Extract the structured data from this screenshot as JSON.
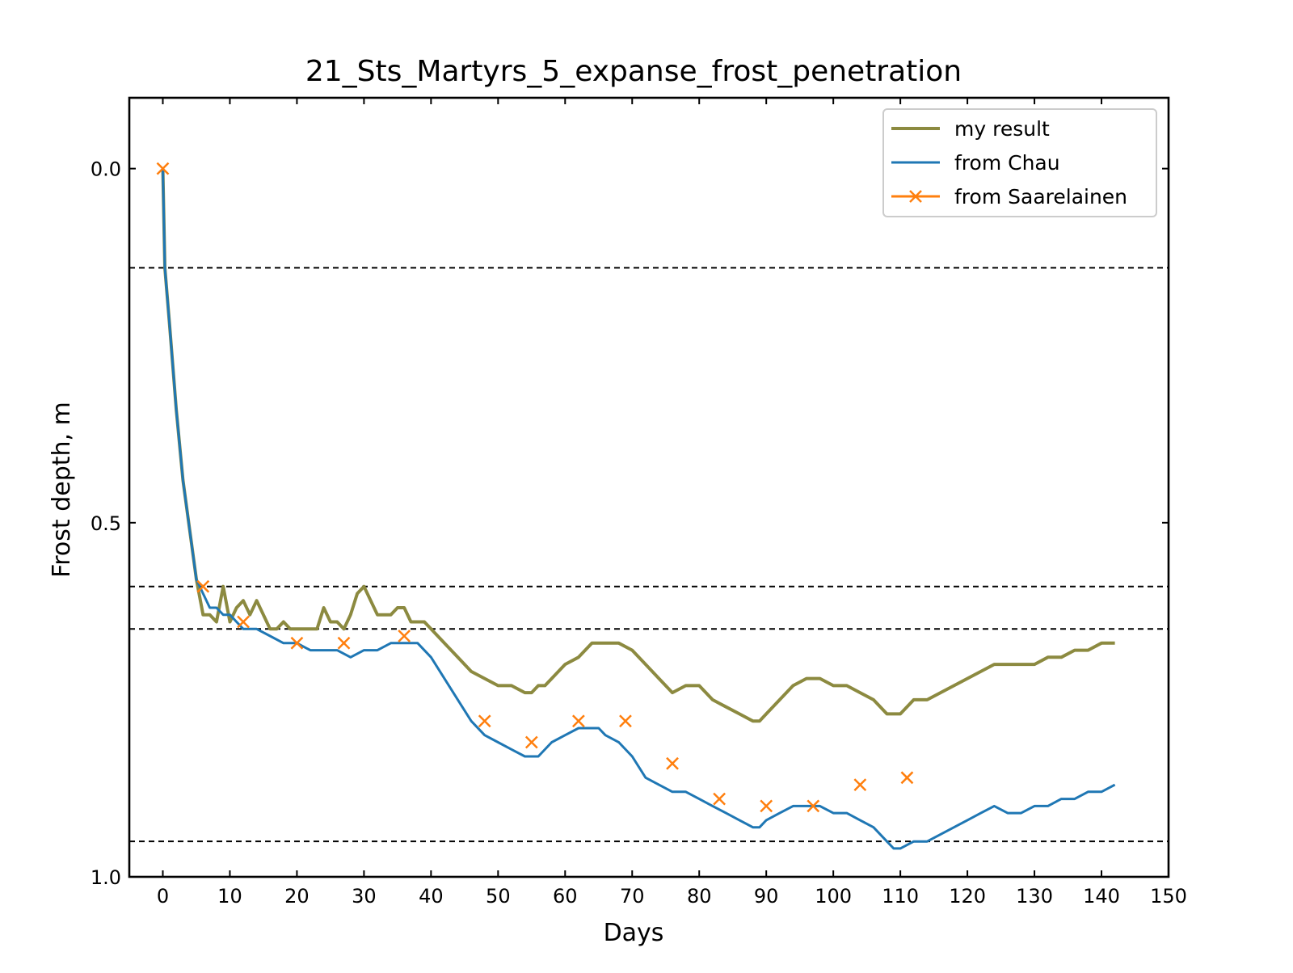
{
  "chart_data": {
    "type": "line",
    "title": "21_Sts_Martyrs_5_expanse_frost_penetration",
    "xlabel": "Days",
    "ylabel": "Frost depth, m",
    "xlim": [
      -5,
      150
    ],
    "ylim": [
      1.0,
      -0.1
    ],
    "y_inverted": true,
    "x_ticks": [
      "0",
      "10",
      "20",
      "30",
      "40",
      "50",
      "60",
      "70",
      "80",
      "90",
      "100",
      "110",
      "120",
      "130",
      "140",
      "150"
    ],
    "y_ticks": [
      "0.0",
      "0.5",
      "1.0"
    ],
    "grid": false,
    "legend_position": "top-right",
    "reference_lines": [
      0.14,
      0.59,
      0.65,
      0.95
    ],
    "series": [
      {
        "name": "my result",
        "color": "#8c8a40",
        "style": "line",
        "x": [
          0,
          0.3,
          1,
          2,
          3,
          4,
          5,
          6,
          7,
          8,
          9,
          10,
          11,
          12,
          13,
          14,
          15,
          16,
          17,
          18,
          19,
          20,
          21,
          22,
          23,
          24,
          25,
          26,
          27,
          28,
          29,
          30,
          31,
          32,
          33,
          34,
          35,
          36,
          37,
          38,
          39,
          40,
          42,
          44,
          46,
          48,
          50,
          52,
          54,
          55,
          56,
          57,
          58,
          60,
          62,
          64,
          65,
          66,
          68,
          70,
          72,
          74,
          76,
          78,
          80,
          82,
          84,
          86,
          88,
          89,
          90,
          92,
          94,
          96,
          98,
          100,
          102,
          104,
          106,
          108,
          109,
          110,
          112,
          114,
          116,
          118,
          120,
          122,
          124,
          126,
          128,
          130,
          132,
          134,
          136,
          138,
          140,
          142
        ],
        "y": [
          0.0,
          0.14,
          0.22,
          0.34,
          0.44,
          0.51,
          0.58,
          0.63,
          0.63,
          0.64,
          0.59,
          0.64,
          0.62,
          0.61,
          0.63,
          0.61,
          0.63,
          0.65,
          0.65,
          0.64,
          0.65,
          0.65,
          0.65,
          0.65,
          0.65,
          0.62,
          0.64,
          0.64,
          0.65,
          0.63,
          0.6,
          0.59,
          0.61,
          0.63,
          0.63,
          0.63,
          0.62,
          0.62,
          0.64,
          0.64,
          0.64,
          0.65,
          0.67,
          0.69,
          0.71,
          0.72,
          0.73,
          0.73,
          0.74,
          0.74,
          0.73,
          0.73,
          0.72,
          0.7,
          0.69,
          0.67,
          0.67,
          0.67,
          0.67,
          0.68,
          0.7,
          0.72,
          0.74,
          0.73,
          0.73,
          0.75,
          0.76,
          0.77,
          0.78,
          0.78,
          0.77,
          0.75,
          0.73,
          0.72,
          0.72,
          0.73,
          0.73,
          0.74,
          0.75,
          0.77,
          0.77,
          0.77,
          0.75,
          0.75,
          0.74,
          0.73,
          0.72,
          0.71,
          0.7,
          0.7,
          0.7,
          0.7,
          0.69,
          0.69,
          0.68,
          0.68,
          0.67,
          0.67
        ]
      },
      {
        "name": "from Chau",
        "color": "#1f77b4",
        "style": "line",
        "x": [
          0,
          0.3,
          1,
          2,
          3,
          4,
          5,
          6,
          7,
          8,
          9,
          10,
          11,
          12,
          13,
          14,
          16,
          18,
          20,
          22,
          24,
          26,
          28,
          30,
          32,
          34,
          36,
          38,
          40,
          42,
          44,
          46,
          48,
          50,
          52,
          54,
          55,
          56,
          58,
          60,
          62,
          64,
          65,
          66,
          68,
          70,
          72,
          74,
          76,
          78,
          80,
          82,
          84,
          86,
          88,
          89,
          90,
          92,
          94,
          96,
          98,
          100,
          102,
          104,
          106,
          108,
          109,
          110,
          112,
          114,
          116,
          118,
          120,
          122,
          124,
          126,
          128,
          130,
          132,
          134,
          136,
          138,
          140,
          142
        ],
        "y": [
          0.0,
          0.14,
          0.22,
          0.34,
          0.44,
          0.51,
          0.58,
          0.6,
          0.62,
          0.62,
          0.63,
          0.63,
          0.64,
          0.65,
          0.65,
          0.65,
          0.66,
          0.67,
          0.67,
          0.68,
          0.68,
          0.68,
          0.69,
          0.68,
          0.68,
          0.67,
          0.67,
          0.67,
          0.69,
          0.72,
          0.75,
          0.78,
          0.8,
          0.81,
          0.82,
          0.83,
          0.83,
          0.83,
          0.81,
          0.8,
          0.79,
          0.79,
          0.79,
          0.8,
          0.81,
          0.83,
          0.86,
          0.87,
          0.88,
          0.88,
          0.89,
          0.9,
          0.91,
          0.92,
          0.93,
          0.93,
          0.92,
          0.91,
          0.9,
          0.9,
          0.9,
          0.91,
          0.91,
          0.92,
          0.93,
          0.95,
          0.96,
          0.96,
          0.95,
          0.95,
          0.94,
          0.93,
          0.92,
          0.91,
          0.9,
          0.91,
          0.91,
          0.9,
          0.9,
          0.89,
          0.89,
          0.88,
          0.88,
          0.87
        ]
      },
      {
        "name": "from Saarelainen",
        "color": "#ff7f0e",
        "style": "marker",
        "x": [
          0,
          6,
          12,
          20,
          27,
          36,
          48,
          55,
          62,
          69,
          76,
          83,
          90,
          97,
          104,
          111
        ],
        "y": [
          0.0,
          0.59,
          0.64,
          0.67,
          0.67,
          0.66,
          0.78,
          0.81,
          0.78,
          0.78,
          0.84,
          0.89,
          0.9,
          0.9,
          0.87,
          0.86
        ]
      }
    ]
  }
}
